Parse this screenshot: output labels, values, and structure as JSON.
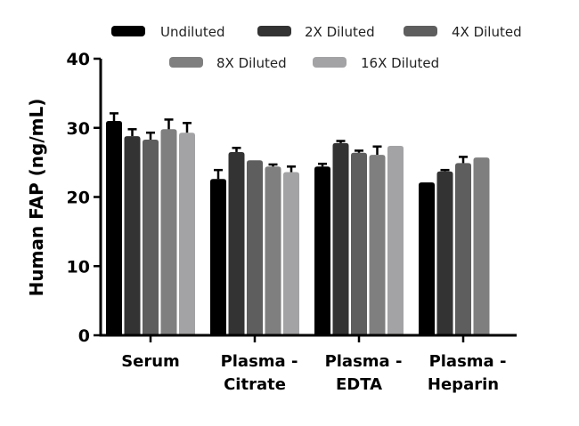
{
  "chart_data": {
    "type": "bar",
    "title": "",
    "xlabel": "",
    "ylabel": "Human FAP (ng/mL)",
    "ylim": [
      0,
      40
    ],
    "yticks": [
      "0",
      "10",
      "20",
      "30",
      "40"
    ],
    "grid": false,
    "legend_position": "top",
    "categories": [
      {
        "lines": [
          "Serum"
        ]
      },
      {
        "lines": [
          "Plasma -",
          "Citrate"
        ]
      },
      {
        "lines": [
          "Plasma -",
          "EDTA"
        ]
      },
      {
        "lines": [
          "Plasma -",
          "Heparin"
        ]
      }
    ],
    "series": [
      {
        "name": "Undiluted",
        "color": "#000000",
        "values": [
          31.0,
          22.6,
          24.4,
          22.1
        ],
        "errors": [
          1.1,
          1.3,
          0.4,
          0.0
        ]
      },
      {
        "name": "2X Diluted",
        "color": "#333333",
        "values": [
          28.8,
          26.5,
          27.8,
          23.7
        ],
        "errors": [
          1.0,
          0.6,
          0.3,
          0.2
        ]
      },
      {
        "name": "4X Diluted",
        "color": "#5e5e5e",
        "values": [
          28.3,
          25.3,
          26.4,
          24.9
        ],
        "errors": [
          1.0,
          0.0,
          0.3,
          0.9
        ]
      },
      {
        "name": "8X Diluted",
        "color": "#7f7f7f",
        "values": [
          29.8,
          24.4,
          26.1,
          25.7
        ],
        "errors": [
          1.4,
          0.3,
          1.2,
          0.0
        ]
      },
      {
        "name": "16X Diluted",
        "color": "#a3a3a5",
        "values": [
          29.3,
          23.6,
          27.4,
          null
        ],
        "errors": [
          1.4,
          0.8,
          0.0,
          null
        ]
      }
    ]
  }
}
